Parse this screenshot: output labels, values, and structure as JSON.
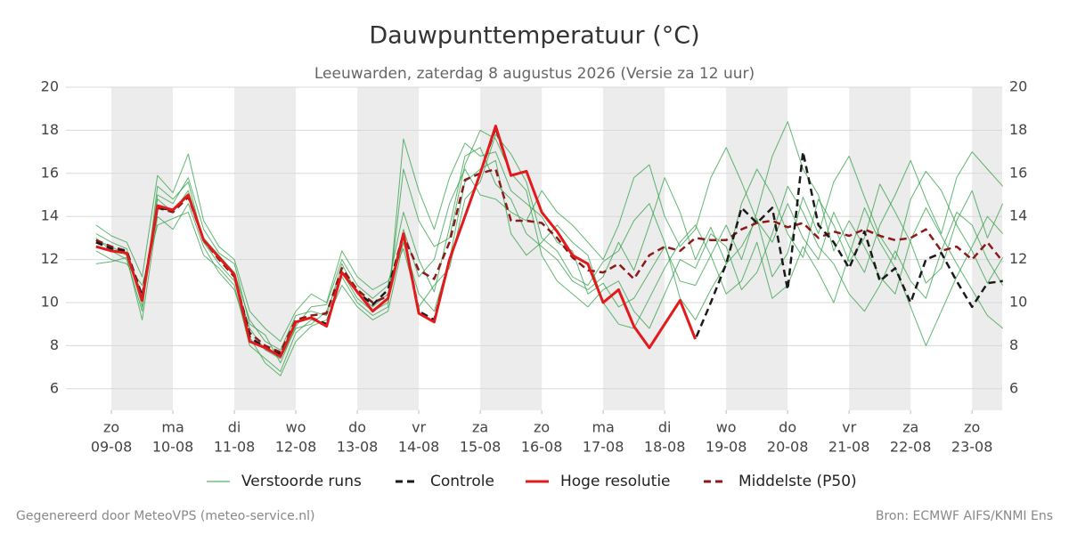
{
  "chart_data": {
    "type": "line",
    "title": "Dauwpunttemperatuur (°C)",
    "subtitle": "Leeuwarden, zaterdag  8 augustus 2026 (Versie za 12 uur)",
    "footer_left": "Gegenereerd door MeteoVPS (meteo-service.nl)",
    "footer_right": "Bron: ECMWF AIFS/KNMI Ens",
    "xlim": [
      -0.74,
      14.49
    ],
    "ylim": [
      5,
      20
    ],
    "yticks": [
      6,
      8,
      10,
      12,
      14,
      16,
      18,
      20
    ],
    "xticks": [
      {
        "value": 0,
        "label": [
          "zo",
          "09-08"
        ]
      },
      {
        "value": 1,
        "label": [
          "ma",
          "10-08"
        ]
      },
      {
        "value": 2,
        "label": [
          "di",
          "11-08"
        ]
      },
      {
        "value": 3,
        "label": [
          "wo",
          "12-08"
        ]
      },
      {
        "value": 4,
        "label": [
          "do",
          "13-08"
        ]
      },
      {
        "value": 5,
        "label": [
          "vr",
          "14-08"
        ]
      },
      {
        "value": 6,
        "label": [
          "za",
          "15-08"
        ]
      },
      {
        "value": 7,
        "label": [
          "zo",
          "16-08"
        ]
      },
      {
        "value": 8,
        "label": [
          "ma",
          "17-08"
        ]
      },
      {
        "value": 9,
        "label": [
          "di",
          "18-08"
        ]
      },
      {
        "value": 10,
        "label": [
          "wo",
          "19-08"
        ]
      },
      {
        "value": 11,
        "label": [
          "do",
          "20-08"
        ]
      },
      {
        "value": 12,
        "label": [
          "vr",
          "21-08"
        ]
      },
      {
        "value": 13,
        "label": [
          "za",
          "22-08"
        ]
      },
      {
        "value": 14,
        "label": [
          "zo",
          "23-08"
        ]
      }
    ],
    "grid": true,
    "x": [
      -0.25,
      0,
      0.25,
      0.5,
      0.75,
      1,
      1.25,
      1.5,
      1.75,
      2,
      2.25,
      2.5,
      2.75,
      3,
      3.25,
      3.5,
      3.75,
      4,
      4.25,
      4.5,
      4.75,
      5,
      5.25,
      5.5,
      5.75,
      6,
      6.25,
      6.5,
      6.75,
      7,
      7.25,
      7.5,
      7.75,
      8,
      8.25,
      8.5,
      8.75,
      9,
      9.25,
      9.5,
      9.75,
      10,
      10.25,
      10.5,
      10.75,
      11,
      11.25,
      11.5,
      11.75,
      12,
      12.25,
      12.5,
      12.75,
      13,
      13.25,
      13.5,
      13.75,
      14,
      14.25,
      14.5
    ],
    "ensemble": {
      "name": "Verstoorde runs",
      "color": "#2e9e44",
      "runs": [
        [
          13.2,
          12.8,
          12.5,
          9.8,
          15.0,
          14.6,
          15.8,
          13.4,
          12.3,
          11.8,
          9.0,
          8.5,
          7.2,
          8.9,
          9.8,
          9.9,
          12.0,
          10.8,
          10.2,
          10.8,
          14.2,
          12.0,
          10.5,
          13.5,
          16.8,
          17.2,
          15.5,
          14.8,
          13.2,
          12.6,
          12.0,
          11.0,
          10.6,
          11.2,
          12.8,
          11.5,
          13.6,
          15.8,
          14.2,
          12.0,
          13.5,
          11.8,
          14.6,
          16.2,
          15.0,
          13.2,
          12.1,
          14.8,
          13.6,
          11.9,
          13.0,
          15.5,
          14.2,
          12.8,
          10.9,
          11.6,
          13.8,
          15.2,
          13.0,
          14.6
        ],
        [
          12.4,
          12.0,
          11.8,
          10.8,
          13.6,
          13.9,
          14.2,
          12.2,
          11.6,
          10.8,
          8.0,
          7.4,
          6.8,
          8.6,
          9.2,
          9.0,
          11.2,
          10.0,
          9.4,
          9.8,
          17.6,
          15.2,
          13.4,
          15.8,
          17.4,
          16.8,
          17.0,
          15.2,
          14.6,
          14.0,
          12.8,
          12.4,
          10.4,
          10.9,
          9.8,
          10.2,
          11.4,
          12.6,
          11.0,
          10.8,
          12.2,
          13.6,
          12.0,
          14.2,
          16.8,
          18.4,
          16.2,
          15.0,
          12.4,
          13.8,
          12.6,
          11.2,
          10.4,
          12.9,
          14.4,
          13.1,
          11.8,
          10.6,
          9.4,
          8.8
        ],
        [
          13.6,
          13.1,
          12.8,
          11.2,
          15.9,
          15.1,
          16.9,
          13.8,
          12.6,
          12.0,
          9.6,
          8.8,
          8.2,
          9.6,
          10.4,
          10.0,
          12.4,
          11.2,
          10.6,
          11.0,
          12.5,
          9.8,
          10.8,
          11.6,
          14.8,
          15.6,
          17.8,
          16.9,
          15.6,
          13.0,
          12.4,
          11.2,
          10.8,
          11.9,
          12.4,
          13.8,
          14.6,
          12.8,
          10.2,
          9.2,
          10.6,
          11.8,
          12.6,
          13.9,
          11.2,
          12.3,
          14.9,
          13.2,
          15.6,
          16.8,
          14.9,
          13.1,
          12.0,
          14.8,
          16.1,
          15.2,
          13.6,
          12.4,
          10.9,
          12.1
        ],
        [
          11.8,
          11.9,
          12.1,
          9.2,
          14.0,
          13.4,
          14.6,
          12.6,
          11.4,
          10.6,
          8.4,
          7.2,
          6.6,
          8.2,
          8.9,
          9.2,
          10.8,
          9.8,
          9.2,
          9.6,
          12.8,
          10.4,
          9.6,
          12.0,
          15.6,
          16.2,
          16.6,
          13.2,
          12.2,
          12.8,
          13.6,
          12.8,
          12.2,
          10.0,
          9.0,
          8.8,
          10.2,
          11.6,
          12.8,
          13.6,
          12.2,
          10.4,
          11.0,
          12.8,
          10.2,
          10.8,
          12.6,
          11.4,
          10.0,
          12.2,
          14.4,
          12.8,
          11.6,
          9.8,
          8.0,
          9.6,
          11.2,
          12.6,
          14.0,
          13.2
        ],
        [
          12.9,
          12.6,
          12.2,
          10.4,
          14.8,
          14.2,
          15.2,
          13.0,
          12.2,
          11.4,
          9.2,
          8.2,
          7.8,
          9.4,
          9.6,
          9.4,
          11.8,
          10.4,
          9.8,
          10.4,
          13.4,
          11.2,
          12.0,
          14.6,
          16.2,
          15.0,
          14.8,
          14.2,
          13.8,
          15.2,
          14.2,
          13.6,
          12.8,
          12.0,
          13.6,
          15.8,
          16.4,
          14.0,
          12.6,
          13.4,
          15.8,
          17.2,
          15.6,
          13.8,
          12.8,
          14.6,
          13.0,
          12.0,
          14.2,
          12.6,
          11.4,
          13.6,
          15.0,
          16.6,
          14.8,
          13.2,
          15.8,
          17.0,
          16.2,
          15.4
        ],
        [
          13.0,
          12.4,
          12.0,
          9.6,
          15.4,
          14.8,
          15.6,
          12.8,
          11.8,
          11.0,
          8.8,
          7.8,
          7.4,
          8.8,
          9.0,
          9.6,
          11.4,
          10.2,
          9.6,
          10.0,
          16.2,
          13.8,
          12.6,
          13.0,
          16.4,
          18.0,
          17.6,
          16.0,
          15.2,
          12.2,
          11.0,
          10.4,
          9.8,
          10.6,
          11.0,
          9.6,
          8.8,
          10.4,
          12.0,
          11.6,
          13.2,
          12.6,
          10.6,
          11.4,
          13.2,
          15.4,
          14.2,
          12.6,
          11.8,
          10.4,
          9.6,
          10.8,
          12.4,
          11.0,
          10.2,
          12.4,
          14.2,
          13.6,
          12.0,
          10.8
        ]
      ]
    },
    "series": [
      {
        "name": "Controle",
        "color": "#1a1a1a",
        "dash": true,
        "values": [
          12.8,
          12.5,
          12.4,
          10.3,
          14.4,
          14.3,
          15.0,
          12.9,
          12.1,
          11.3,
          8.4,
          7.9,
          7.6,
          9.1,
          9.3,
          9.0,
          11.4,
          10.5,
          9.9,
          10.6,
          13.2,
          9.6,
          9.2,
          12.0,
          14.0,
          16.0,
          18.1,
          15.9,
          16.1,
          14.2,
          13.3,
          12.2,
          11.8,
          10.0,
          10.6,
          8.9,
          7.9,
          9.0,
          10.1,
          8.3,
          10.0,
          11.8,
          14.4,
          13.7,
          14.4,
          10.6,
          17.0,
          13.6,
          12.8,
          11.6,
          13.3,
          11.0,
          11.6,
          10.0,
          12.0,
          12.3,
          11.0,
          9.8,
          10.9,
          11.0
        ]
      },
      {
        "name": "Hoge resolutie",
        "color": "#e31a1c",
        "dash": false,
        "values": [
          12.6,
          12.4,
          12.3,
          10.1,
          14.5,
          14.3,
          15.0,
          12.9,
          12.1,
          11.3,
          8.2,
          7.9,
          7.5,
          9.1,
          9.3,
          8.9,
          11.4,
          10.5,
          9.6,
          10.2,
          13.2,
          9.5,
          9.1,
          12.0,
          14.0,
          16.0,
          18.2,
          15.9,
          16.1,
          14.2,
          13.3,
          12.2,
          11.8,
          10.0,
          10.6,
          8.9,
          7.9,
          9.0,
          10.1,
          8.3,
          null,
          null,
          null,
          null,
          null,
          null,
          null,
          null,
          null,
          null,
          null,
          null,
          null,
          null,
          null,
          null,
          null,
          null,
          null,
          null
        ]
      },
      {
        "name": "Middelste (P50)",
        "color": "#8b1a1a",
        "dash": true,
        "values": [
          12.9,
          12.6,
          12.4,
          10.2,
          14.4,
          14.2,
          14.9,
          12.9,
          12.0,
          11.2,
          8.6,
          8.0,
          7.7,
          9.2,
          9.4,
          9.5,
          11.6,
          10.6,
          10.0,
          10.3,
          13.1,
          11.5,
          11.1,
          12.8,
          15.7,
          16.0,
          16.2,
          13.8,
          13.8,
          13.7,
          13.0,
          12.1,
          11.5,
          11.4,
          11.8,
          11.1,
          12.2,
          12.6,
          12.4,
          13.0,
          12.9,
          12.9,
          13.4,
          13.7,
          13.8,
          13.5,
          13.7,
          13.0,
          13.3,
          13.1,
          13.4,
          13.1,
          12.9,
          13.0,
          13.4,
          12.4,
          12.6,
          12.0,
          12.8,
          11.9
        ]
      }
    ]
  }
}
